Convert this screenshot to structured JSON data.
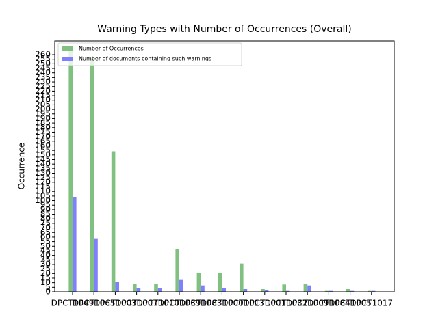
{
  "chart_data": {
    "type": "bar",
    "title": "Warning Types with Number of Occurrences (Overall)",
    "ylabel": "Occurrence",
    "categories": [
      "DPCT1049",
      "DPCT1065",
      "DPCT1003",
      "DPCT1007",
      "DPCT1010",
      "DPCT1039",
      "DPCT1083",
      "DPCT1000",
      "DPCT1013",
      "DPCT1001",
      "DPCT1032",
      "DPCT1009",
      "DPCT1084",
      "DPCT1005",
      "DPCT1017"
    ],
    "series": [
      {
        "name": "Number of Occurrences",
        "color": "#80c080",
        "values": [
          265,
          256,
          154,
          9,
          9,
          47,
          21,
          21,
          31,
          3,
          8,
          9,
          1,
          3,
          1
        ]
      },
      {
        "name": "Number of documents containing such warnings",
        "color": "#8080ff",
        "values": [
          104,
          58,
          11,
          4,
          4,
          13,
          7,
          4,
          3,
          2,
          1,
          7,
          1,
          1,
          1
        ]
      }
    ],
    "ylim": [
      0,
      275
    ],
    "yticks": [
      0,
      5,
      10,
      15,
      20,
      25,
      30,
      35,
      40,
      45,
      50,
      55,
      60,
      65,
      70,
      75,
      80,
      85,
      90,
      95,
      100,
      105,
      110,
      115,
      120,
      125,
      130,
      135,
      140,
      145,
      150,
      155,
      160,
      165,
      170,
      175,
      180,
      185,
      190,
      195,
      200,
      205,
      210,
      215,
      220,
      225,
      230,
      235,
      240,
      245,
      250,
      255,
      260
    ],
    "legend": "upper left"
  }
}
